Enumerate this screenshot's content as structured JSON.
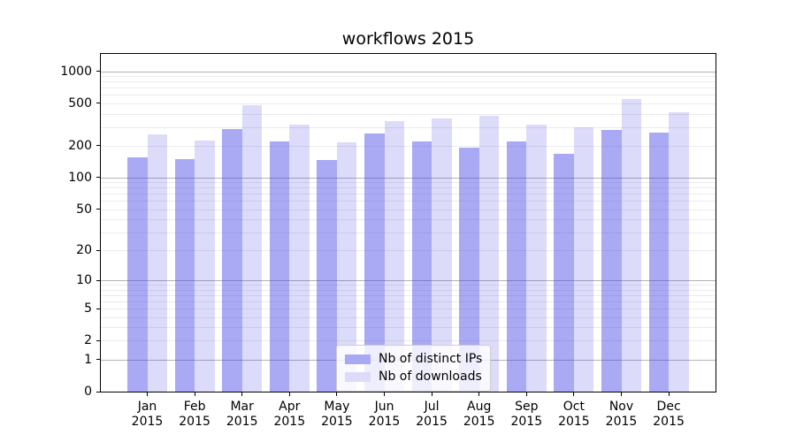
{
  "chart_data": {
    "type": "bar",
    "title": "workflows 2015",
    "categories": [
      "Jan",
      "Feb",
      "Mar",
      "Apr",
      "May",
      "Jun",
      "Jul",
      "Aug",
      "Sep",
      "Oct",
      "Nov",
      "Dec"
    ],
    "x_year_label": "2015",
    "series": [
      {
        "name": "Nb of distinct IPs",
        "values": [
          155,
          148,
          285,
          220,
          146,
          258,
          218,
          192,
          218,
          167,
          283,
          265
        ]
      },
      {
        "name": "Nb of downloads",
        "values": [
          255,
          222,
          480,
          318,
          215,
          338,
          360,
          382,
          318,
          300,
          545,
          415
        ]
      }
    ],
    "xlabel": "",
    "ylabel": "",
    "yscale": "log1p",
    "ylim": [
      0,
      1450
    ],
    "yticks": [
      0,
      1,
      2,
      5,
      10,
      20,
      50,
      100,
      200,
      500,
      1000
    ],
    "major_gridlines": [
      1,
      10,
      100,
      1000
    ],
    "minor_gridlines": [
      2,
      3,
      4,
      5,
      6,
      7,
      8,
      9,
      20,
      30,
      40,
      50,
      60,
      70,
      80,
      90,
      200,
      300,
      400,
      500,
      600,
      700,
      800,
      900
    ],
    "grid": true,
    "legend_position": "lower center"
  },
  "colors": {
    "bar_ips": "rgba(68,68,230,0.46)",
    "bar_downloads": "rgba(68,68,230,0.19)",
    "bar_ips_flat": "#a9a9f3",
    "bar_downloads_flat": "#dcdcfa",
    "grid_major": "#b2b2b2",
    "grid_minor": "#ebebeb",
    "axis": "#000000",
    "background": "#ffffff"
  }
}
